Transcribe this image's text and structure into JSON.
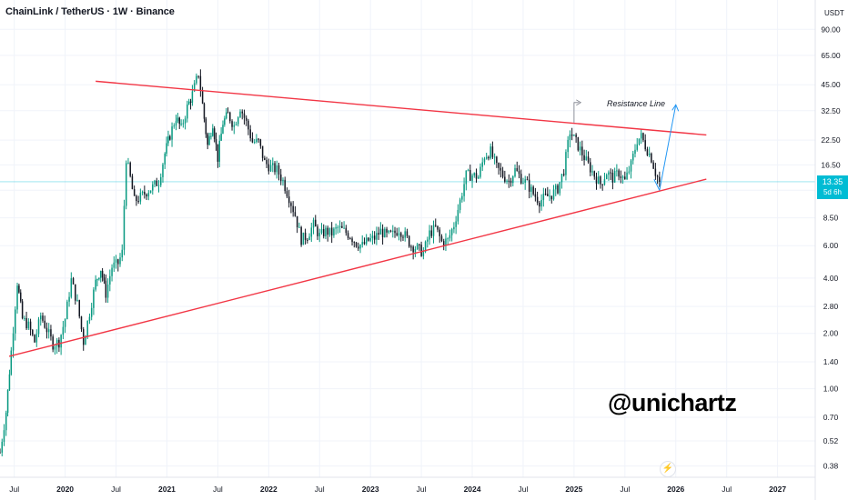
{
  "header": {
    "pair_title": "ChainLink / TetherUS · 1W · Binance",
    "axis_unit": "USDT"
  },
  "price_tag": {
    "price": "13.35",
    "countdown": "5d 6h"
  },
  "watermark": "@unichartz",
  "icons": {
    "bolt": "lightning-icon"
  },
  "colors": {
    "bullish": "#089981",
    "bearish": "#131722",
    "trendline": "#f23645",
    "projection": "#2196f3",
    "grid": "#f0f3fa",
    "price_line": "#00bcd4"
  },
  "chart_data": {
    "type": "candlestick",
    "title": "ChainLink / TetherUS · 1W · Binance",
    "y_scale": "log",
    "ylim": [
      0.33,
      130
    ],
    "xlim": [
      2019.36,
      2027.37
    ],
    "y_ticks": [
      0.38,
      0.52,
      0.7,
      1.0,
      1.4,
      2.0,
      2.8,
      4.0,
      6.0,
      8.5,
      12.0,
      16.5,
      22.5,
      32.5,
      45.0,
      65.0,
      90.0
    ],
    "y_tick_labels": [
      "0.38",
      "0.52",
      "0.70",
      "1.00",
      "1.40",
      "2.00",
      "2.80",
      "4.00",
      "6.00",
      "8.50",
      "",
      "16.50",
      "22.50",
      "32.50",
      "45.00",
      "65.00",
      "90.00"
    ],
    "x_ticks": [
      {
        "label": "Jul",
        "t": 2019.5
      },
      {
        "label": "2020",
        "t": 2020.0
      },
      {
        "label": "Jul",
        "t": 2020.5
      },
      {
        "label": "2021",
        "t": 2021.0
      },
      {
        "label": "Jul",
        "t": 2021.5
      },
      {
        "label": "2022",
        "t": 2022.0
      },
      {
        "label": "Jul",
        "t": 2022.5
      },
      {
        "label": "2023",
        "t": 2023.0
      },
      {
        "label": "Jul",
        "t": 2023.5
      },
      {
        "label": "2024",
        "t": 2024.0
      },
      {
        "label": "Jul",
        "t": 2024.5
      },
      {
        "label": "2025",
        "t": 2025.0
      },
      {
        "label": "Jul",
        "t": 2025.5
      },
      {
        "label": "2026",
        "t": 2026.0
      },
      {
        "label": "Jul",
        "t": 2026.5
      },
      {
        "label": "2027",
        "t": 2027.0
      }
    ],
    "current_price": 13.35,
    "price_path": [
      [
        2019.36,
        0.45
      ],
      [
        2019.42,
        0.75
      ],
      [
        2019.47,
        1.6
      ],
      [
        2019.53,
        3.8
      ],
      [
        2019.58,
        2.4
      ],
      [
        2019.64,
        2.2
      ],
      [
        2019.7,
        1.8
      ],
      [
        2019.76,
        2.5
      ],
      [
        2019.82,
        2.1
      ],
      [
        2019.88,
        1.75
      ],
      [
        2019.94,
        1.8
      ],
      [
        2020.0,
        2.4
      ],
      [
        2020.06,
        3.9
      ],
      [
        2020.12,
        2.9
      ],
      [
        2020.18,
        1.8
      ],
      [
        2020.24,
        2.6
      ],
      [
        2020.3,
        3.8
      ],
      [
        2020.35,
        4.5
      ],
      [
        2020.4,
        3.3
      ],
      [
        2020.46,
        4.6
      ],
      [
        2020.52,
        4.8
      ],
      [
        2020.56,
        5.5
      ],
      [
        2020.6,
        18.0
      ],
      [
        2020.64,
        14.0
      ],
      [
        2020.68,
        10.5
      ],
      [
        2020.74,
        11.0
      ],
      [
        2020.8,
        11.8
      ],
      [
        2020.86,
        12.5
      ],
      [
        2020.92,
        13.5
      ],
      [
        2020.98,
        19.0
      ],
      [
        2021.03,
        24.0
      ],
      [
        2021.09,
        30.0
      ],
      [
        2021.14,
        26.0
      ],
      [
        2021.2,
        34.0
      ],
      [
        2021.25,
        40.0
      ],
      [
        2021.31,
        52.0
      ],
      [
        2021.35,
        35.0
      ],
      [
        2021.4,
        21.0
      ],
      [
        2021.45,
        28.0
      ],
      [
        2021.5,
        18.0
      ],
      [
        2021.55,
        28.0
      ],
      [
        2021.6,
        31.0
      ],
      [
        2021.66,
        27.0
      ],
      [
        2021.72,
        34.0
      ],
      [
        2021.78,
        28.0
      ],
      [
        2021.84,
        22.0
      ],
      [
        2021.9,
        22.0
      ],
      [
        2021.96,
        17.0
      ],
      [
        2022.02,
        16.0
      ],
      [
        2022.08,
        15.5
      ],
      [
        2022.14,
        13.5
      ],
      [
        2022.2,
        11.0
      ],
      [
        2022.26,
        8.8
      ],
      [
        2022.32,
        6.5
      ],
      [
        2022.38,
        6.8
      ],
      [
        2022.44,
        7.8
      ],
      [
        2022.5,
        6.8
      ],
      [
        2022.56,
        7.2
      ],
      [
        2022.62,
        7.0
      ],
      [
        2022.68,
        7.5
      ],
      [
        2022.74,
        7.2
      ],
      [
        2022.8,
        6.8
      ],
      [
        2022.86,
        6.2
      ],
      [
        2022.92,
        6.0
      ],
      [
        2022.98,
        6.4
      ],
      [
        2023.04,
        6.6
      ],
      [
        2023.1,
        7.2
      ],
      [
        2023.16,
        6.8
      ],
      [
        2023.22,
        6.9
      ],
      [
        2023.28,
        7.4
      ],
      [
        2023.34,
        6.8
      ],
      [
        2023.4,
        6.0
      ],
      [
        2023.46,
        5.8
      ],
      [
        2023.52,
        5.5
      ],
      [
        2023.58,
        7.0
      ],
      [
        2023.64,
        7.5
      ],
      [
        2023.7,
        6.3
      ],
      [
        2023.76,
        6.4
      ],
      [
        2023.82,
        7.8
      ],
      [
        2023.88,
        10.5
      ],
      [
        2023.94,
        14.5
      ],
      [
        2024.0,
        14.5
      ],
      [
        2024.06,
        14.2
      ],
      [
        2024.12,
        18.5
      ],
      [
        2024.18,
        19.5
      ],
      [
        2024.24,
        16.0
      ],
      [
        2024.3,
        14.5
      ],
      [
        2024.36,
        13.5
      ],
      [
        2024.42,
        15.5
      ],
      [
        2024.48,
        14.0
      ],
      [
        2024.54,
        13.0
      ],
      [
        2024.6,
        11.5
      ],
      [
        2024.66,
        10.5
      ],
      [
        2024.72,
        11.0
      ],
      [
        2024.78,
        11.4
      ],
      [
        2024.84,
        12.3
      ],
      [
        2024.9,
        15.5
      ],
      [
        2024.96,
        25.0
      ],
      [
        2025.02,
        22.0
      ],
      [
        2025.08,
        19.0
      ],
      [
        2025.14,
        16.5
      ],
      [
        2025.2,
        14.5
      ],
      [
        2025.26,
        13.0
      ],
      [
        2025.32,
        15.0
      ],
      [
        2025.38,
        14.0
      ],
      [
        2025.44,
        15.0
      ],
      [
        2025.5,
        13.5
      ],
      [
        2025.56,
        16.5
      ],
      [
        2025.62,
        22.5
      ],
      [
        2025.66,
        23.5
      ],
      [
        2025.7,
        21.0
      ],
      [
        2025.76,
        18.0
      ],
      [
        2025.8,
        15.0
      ],
      [
        2025.84,
        13.35
      ]
    ],
    "series": [
      {
        "name": "",
        "type": "line",
        "points": [
          [
            2020.3,
            47.0
          ],
          [
            2026.3,
            24.0
          ]
        ]
      },
      {
        "name": "",
        "type": "line",
        "points": [
          [
            2019.45,
            1.5
          ],
          [
            2026.3,
            13.8
          ]
        ]
      }
    ],
    "annotations": [
      {
        "text": "Resistance Line",
        "t": 2025.12,
        "price": 36.0,
        "arrow_from": [
          2025.0,
          28.0
        ]
      },
      {
        "text": "",
        "type": "projection-arrow",
        "from": [
          2025.84,
          12.0
        ],
        "to": [
          2026.0,
          35.0
        ]
      }
    ]
  }
}
